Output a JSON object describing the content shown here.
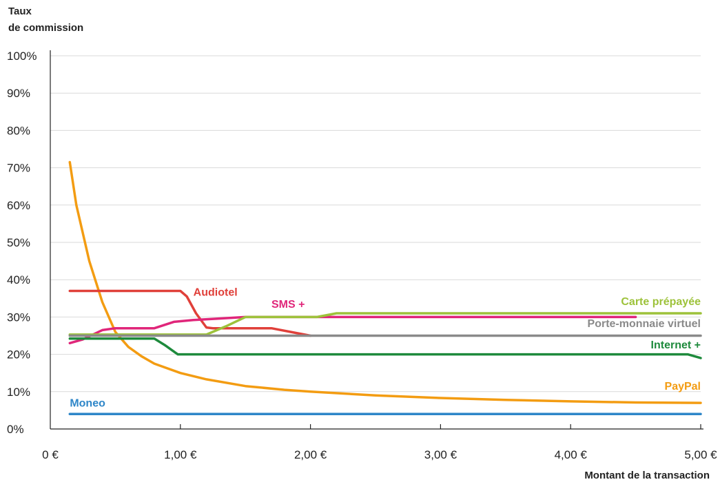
{
  "chart_data": {
    "type": "line",
    "ylabel_line1": "Taux",
    "ylabel_line2": "de commission",
    "xlabel": "Montant de la transaction",
    "xlim": [
      0,
      5
    ],
    "ylim": [
      0,
      100
    ],
    "grid": true,
    "x_ticks": [
      {
        "value": 0,
        "label": "0 €"
      },
      {
        "value": 1,
        "label": "1,00 €"
      },
      {
        "value": 2,
        "label": "2,00 €"
      },
      {
        "value": 3,
        "label": "3,00 €"
      },
      {
        "value": 4,
        "label": "4,00 €"
      },
      {
        "value": 5,
        "label": "5,00 €"
      }
    ],
    "y_ticks": [
      {
        "value": 0,
        "label": "0%"
      },
      {
        "value": 10,
        "label": "10%"
      },
      {
        "value": 20,
        "label": "20%"
      },
      {
        "value": 30,
        "label": "30%"
      },
      {
        "value": 40,
        "label": "40%"
      },
      {
        "value": 50,
        "label": "50%"
      },
      {
        "value": 60,
        "label": "60%"
      },
      {
        "value": 70,
        "label": "70%"
      },
      {
        "value": 80,
        "label": "80%"
      },
      {
        "value": 90,
        "label": "90%"
      },
      {
        "value": 100,
        "label": "100%"
      }
    ],
    "series": [
      {
        "name": "PayPal",
        "color": "#f39c12",
        "label_anchor": "end",
        "label_at": [
          5.0,
          10.5
        ],
        "points": [
          [
            0.15,
            71.5
          ],
          [
            0.2,
            60
          ],
          [
            0.3,
            45
          ],
          [
            0.4,
            34
          ],
          [
            0.5,
            26
          ],
          [
            0.6,
            22
          ],
          [
            0.7,
            19.5
          ],
          [
            0.8,
            17.5
          ],
          [
            1.0,
            15
          ],
          [
            1.2,
            13.3
          ],
          [
            1.5,
            11.5
          ],
          [
            1.8,
            10.5
          ],
          [
            2.0,
            10
          ],
          [
            2.5,
            9
          ],
          [
            3.0,
            8.3
          ],
          [
            3.5,
            7.8
          ],
          [
            4.0,
            7.4
          ],
          [
            4.5,
            7.1
          ],
          [
            5.0,
            7.0
          ]
        ]
      },
      {
        "name": "Audiotel",
        "color": "#e0403a",
        "label_anchor": "start",
        "label_at": [
          1.1,
          35.7
        ],
        "points": [
          [
            0.15,
            37
          ],
          [
            1.0,
            37
          ],
          [
            1.05,
            35.5
          ],
          [
            1.12,
            31
          ],
          [
            1.2,
            27.2
          ],
          [
            1.25,
            27
          ],
          [
            1.7,
            27
          ],
          [
            1.85,
            26
          ],
          [
            2.0,
            25
          ]
        ]
      },
      {
        "name": "SMS +",
        "color": "#e0267a",
        "label_anchor": "start",
        "label_at": [
          1.7,
          32.5
        ],
        "points": [
          [
            0.15,
            23
          ],
          [
            0.25,
            24
          ],
          [
            0.4,
            26.5
          ],
          [
            0.5,
            27
          ],
          [
            0.8,
            27
          ],
          [
            0.95,
            28.7
          ],
          [
            1.1,
            29.2
          ],
          [
            1.3,
            29.6
          ],
          [
            1.5,
            30
          ],
          [
            4.5,
            30
          ]
        ]
      },
      {
        "name": "Carte prépayée",
        "color": "#9dc23a",
        "label_anchor": "end",
        "label_at": [
          5.0,
          33.2
        ],
        "points": [
          [
            0.15,
            25.3
          ],
          [
            1.2,
            25.3
          ],
          [
            1.35,
            27.5
          ],
          [
            1.5,
            30
          ],
          [
            2.05,
            30
          ],
          [
            2.2,
            31
          ],
          [
            5.0,
            31
          ]
        ]
      },
      {
        "name": "Porte-monnaie virtuel",
        "color": "#8a8a8a",
        "label_anchor": "end",
        "label_at": [
          5.0,
          27.3
        ],
        "points": [
          [
            0.15,
            25
          ],
          [
            5.0,
            25
          ]
        ]
      },
      {
        "name": "Internet +",
        "color": "#1e8a3c",
        "label_anchor": "end",
        "label_at": [
          5.0,
          21.6
        ],
        "points": [
          [
            0.15,
            24.2
          ],
          [
            0.8,
            24.2
          ],
          [
            0.88,
            22.5
          ],
          [
            0.98,
            20
          ],
          [
            4.9,
            20
          ],
          [
            5.0,
            19
          ]
        ]
      },
      {
        "name": "Moneo",
        "color": "#2e86c8",
        "label_anchor": "start",
        "label_at": [
          0.15,
          6.0
        ],
        "points": [
          [
            0.15,
            4
          ],
          [
            5.0,
            4
          ]
        ]
      }
    ]
  }
}
